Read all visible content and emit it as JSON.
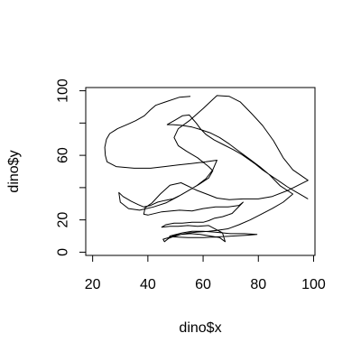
{
  "chart_data": {
    "type": "line",
    "xlabel": "dino$x",
    "ylabel": "dino$y",
    "xlim": [
      17.5,
      100.5
    ],
    "ylim": [
      -2,
      102
    ],
    "xticks": [
      "20",
      "40",
      "60",
      "80",
      "100"
    ],
    "yticks": [
      "0",
      "20",
      "60",
      "100"
    ],
    "grid": false,
    "legend": "none",
    "line_color": "#000000",
    "series": [
      {
        "x": [
          55.4,
          51.5,
          46.2,
          42.8,
          40.8,
          38.7,
          35.6,
          33.1,
          29.0,
          26.2,
          25.0,
          24.4,
          24.6,
          25.2,
          28.5,
          35.0,
          41.0,
          46.0,
          51.0,
          56.0,
          61.0,
          65.0,
          63.5,
          61.0,
          57.5,
          55.0,
          52.0,
          49.0,
          46.0,
          43.5,
          41.0,
          38.5,
          36.5,
          34.0,
          31.0,
          29.5,
          30.0,
          33.0,
          37.0,
          42.0,
          46.5,
          51.0,
          55.0,
          58.5,
          62.0,
          63.5,
          62.0,
          58.0,
          54.0,
          51.0,
          49.5,
          51.0,
          55.0,
          60.0,
          65.0,
          69.5,
          73.5,
          77.5,
          81.5,
          85.5,
          89.0,
          92.5,
          98.0,
          91.0,
          85.0,
          80.0,
          74.5,
          69.5,
          65.0,
          62.0,
          57.5,
          52.0,
          48.0,
          44.5,
          41.5,
          39.0,
          38.5,
          40.0,
          45.0,
          51.5,
          56.0,
          60.0,
          64.5,
          69.0,
          73.0,
          74.5,
          70.5,
          67.0,
          64.0,
          62.0,
          60.0,
          56.0,
          52.5,
          49.5,
          46.5,
          45.0,
          48.0,
          51.0,
          54.5,
          58.0,
          62.0,
          67.0,
          68.0,
          66.0,
          62.5,
          59.0,
          55.5,
          52.0,
          49.0,
          47.5,
          48.0,
          52.5,
          56.0,
          60.0,
          64.0,
          67.0,
          70.0,
          75.0,
          79.5,
          76.0,
          71.0,
          65.5,
          60.0,
          54.5,
          48.5,
          45.5,
          46.0,
          47.5,
          49.0,
          52.0,
          55.0,
          58.0,
          62.0,
          65.0,
          69.0,
          73.0,
          77.0,
          81.0,
          85.0,
          89.0,
          92.5,
          88.0,
          84.0,
          80.5,
          77.0,
          73.0,
          69.5,
          66.0,
          62.5,
          59.0,
          56.0,
          52.5,
          49.0,
          47.0,
          48.0,
          50.0,
          52.5,
          55.0,
          56.0,
          57.5,
          59.0,
          61.0,
          64.0,
          67.5,
          71.0,
          74.0,
          76.5,
          79.0,
          81.5,
          84.5,
          87.5,
          90.5,
          93.5,
          96.0,
          98.0
        ],
        "y": [
          96.5,
          96.0,
          93.0,
          91.0,
          88.0,
          84.5,
          81.5,
          79.5,
          76.5,
          73.5,
          70.0,
          65.0,
          60.0,
          56.0,
          53.0,
          52.0,
          52.0,
          53.0,
          54.0,
          55.0,
          56.0,
          57.0,
          51.0,
          45.5,
          41.0,
          38.5,
          35.5,
          33.0,
          32.0,
          31.0,
          29.0,
          28.0,
          29.5,
          31.5,
          34.5,
          37.0,
          31.0,
          27.0,
          26.0,
          28.0,
          30.5,
          34.5,
          38.5,
          42.0,
          46.0,
          50.5,
          53.0,
          58.5,
          62.5,
          66.0,
          71.0,
          76.5,
          81.5,
          89.0,
          97.0,
          96.5,
          93.0,
          86.0,
          78.5,
          69.0,
          58.5,
          51.0,
          44.5,
          38.5,
          34.5,
          33.0,
          33.0,
          32.5,
          33.5,
          35.5,
          38.5,
          43.0,
          41.5,
          36.0,
          30.5,
          27.5,
          23.5,
          23.0,
          25.0,
          26.0,
          25.5,
          27.0,
          28.0,
          28.0,
          29.0,
          31.0,
          24.0,
          22.0,
          21.0,
          19.5,
          18.5,
          18.5,
          18.0,
          18.0,
          17.0,
          15.5,
          16.0,
          16.0,
          16.5,
          16.0,
          16.5,
          12.0,
          6.5,
          9.0,
          10.0,
          11.0,
          11.5,
          11.0,
          9.5,
          8.5,
          10.0,
          12.0,
          13.0,
          13.0,
          12.5,
          12.0,
          11.5,
          11.5,
          11.0,
          10.5,
          10.0,
          9.5,
          9.0,
          9.0,
          9.5,
          8.0,
          6.5,
          8.5,
          10.0,
          11.0,
          12.0,
          12.5,
          13.0,
          13.5,
          14.5,
          17.0,
          20.0,
          23.5,
          27.0,
          31.0,
          36.0,
          41.0,
          48.0,
          53.0,
          57.5,
          62.5,
          67.0,
          71.0,
          74.0,
          76.0,
          77.5,
          78.5,
          79.0,
          79.0,
          80.0,
          82.0,
          84.5,
          85.0,
          83.0,
          80.0,
          76.5,
          73.0,
          69.5,
          66.5,
          63.5,
          60.5,
          57.5,
          54.5,
          51.0,
          47.5,
          44.0,
          40.5,
          37.5,
          35.0,
          33.0
        ]
      }
    ]
  }
}
